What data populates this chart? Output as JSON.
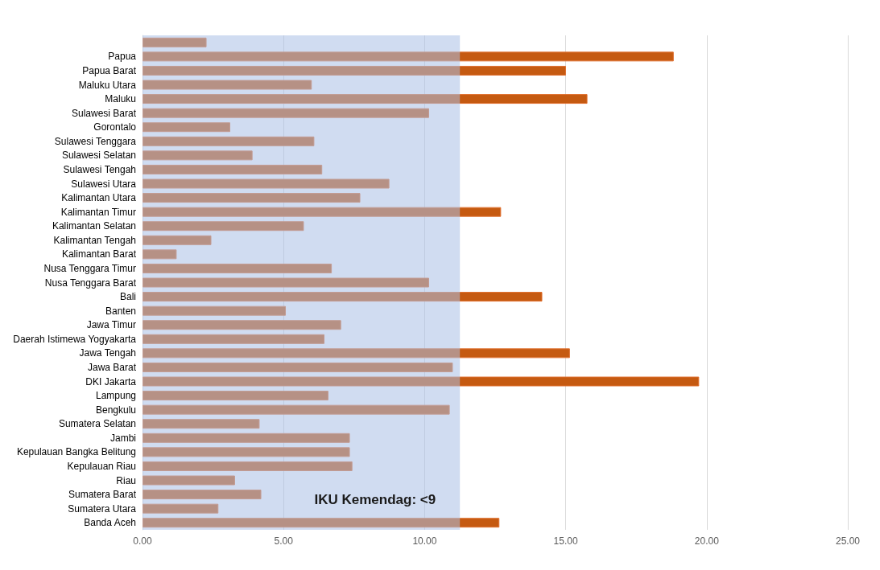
{
  "chart_data": {
    "type": "bar",
    "orientation": "horizontal",
    "categories": [
      null,
      "Papua",
      "Papua Barat",
      "Maluku Utara",
      "Maluku",
      "Sulawesi Barat",
      "Gorontalo",
      "Sulawesi Tenggara",
      "Sulawesi Selatan",
      "Sulawesi Tengah",
      "Sulawesi Utara",
      "Kalimantan Utara",
      "Kalimantan Timur",
      "Kalimantan Selatan",
      "Kalimantan Tengah",
      "Kalimantan Barat",
      "Nusa Tenggara Timur",
      "Nusa Tenggara Barat",
      "Bali",
      "Banten",
      "Jawa Timur",
      "Daerah Istimewa Yogyakarta",
      "Jawa Tengah",
      "Jawa Barat",
      "DKI Jakarta",
      "Lampung",
      "Bengkulu",
      "Sumatera Selatan",
      "Jambi",
      "Kepulauan Bangka Belitung",
      "Kepulauan Riau",
      "Riau",
      "Sumatera Barat",
      "Sumatera Utara",
      "Banda Aceh"
    ],
    "values": [
      2.27,
      18.83,
      15.01,
      6.0,
      15.77,
      10.16,
      3.11,
      6.09,
      3.9,
      6.37,
      8.75,
      7.72,
      12.71,
      5.72,
      2.44,
      1.21,
      6.71,
      10.16,
      14.17,
      5.08,
      7.04,
      6.45,
      15.15,
      11.0,
      19.73,
      6.59,
      10.89,
      4.15,
      7.35,
      7.35,
      7.44,
      3.28,
      4.21,
      2.69,
      12.65
    ],
    "color": "#c55a11",
    "xlim": [
      0,
      25
    ],
    "xticks": [
      {
        "value": 0,
        "label": "0.00"
      },
      {
        "value": 5,
        "label": "5.00"
      },
      {
        "value": 10,
        "label": "10.00"
      },
      {
        "value": 15,
        "label": "15.00"
      },
      {
        "value": 20,
        "label": "20.00"
      },
      {
        "value": 25,
        "label": "25.00"
      }
    ],
    "grid": "x",
    "bands": [
      {
        "axis": "x",
        "from": 0,
        "to": 11.25,
        "label": "IKU Kemendag: <9",
        "color": "#a9c0e6"
      }
    ]
  }
}
